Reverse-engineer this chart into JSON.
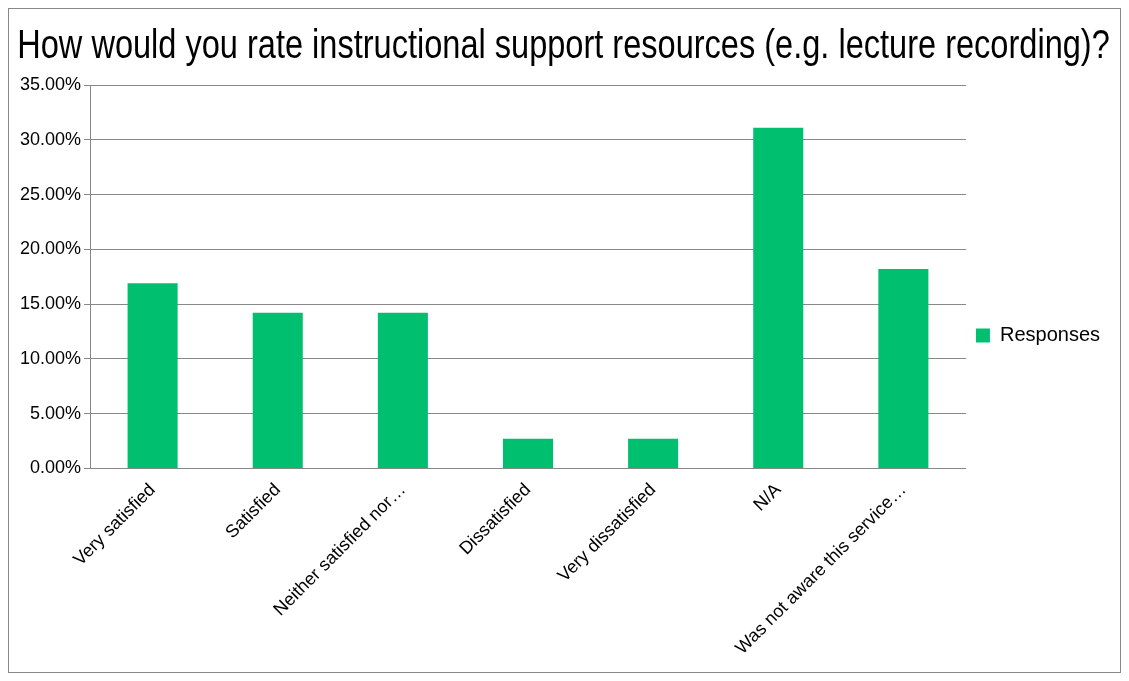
{
  "chart_data": {
    "type": "bar",
    "title": "How would you rate instructional support resources (e.g. lecture recording)?",
    "categories": [
      "Very satisfied",
      "Satisfied",
      "Neither satisfied nor…",
      "Dissatisfied",
      "Very dissatisfied",
      "N/A",
      "Was not aware this service…"
    ],
    "series": [
      {
        "name": "Responses",
        "color": "#00c070",
        "values": [
          16.9,
          14.2,
          14.2,
          2.7,
          2.7,
          31.1,
          18.2
        ]
      }
    ],
    "ylim": [
      0,
      35
    ],
    "yticks": [
      {
        "value": 0,
        "label": "0.00%"
      },
      {
        "value": 5,
        "label": "5.00%"
      },
      {
        "value": 10,
        "label": "10.00%"
      },
      {
        "value": 15,
        "label": "15.00%"
      },
      {
        "value": 20,
        "label": "20.00%"
      },
      {
        "value": 25,
        "label": "25.00%"
      },
      {
        "value": 30,
        "label": "30.00%"
      },
      {
        "value": 35,
        "label": "35.00%"
      }
    ],
    "grid": "y",
    "legend": "right"
  }
}
